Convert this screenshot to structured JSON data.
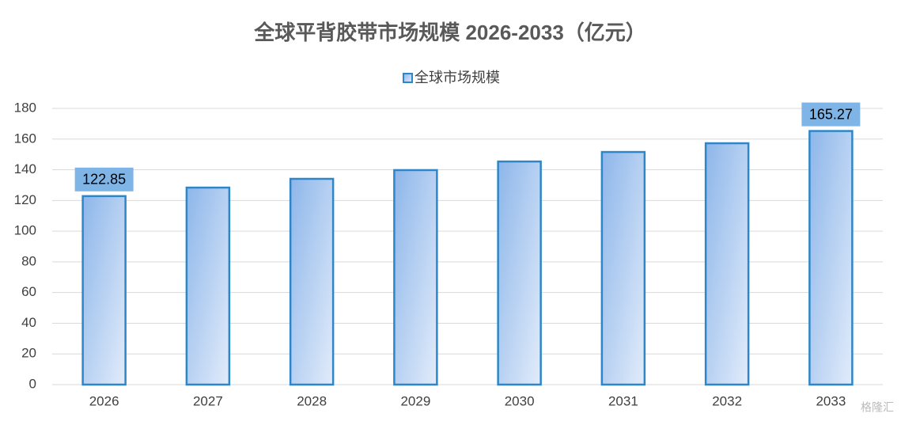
{
  "chart_data": {
    "type": "bar",
    "title": "全球平背胶带市场规模 2026-2033（亿元）",
    "categories": [
      "2026",
      "2027",
      "2028",
      "2029",
      "2030",
      "2031",
      "2032",
      "2033"
    ],
    "series": [
      {
        "name": "全球市场规模",
        "color": "#2e86c8",
        "values": [
          122.85,
          128.4,
          134.1,
          139.8,
          145.4,
          151.6,
          157.3,
          165.27
        ],
        "show_labels": [
          true,
          false,
          false,
          false,
          false,
          false,
          false,
          true
        ]
      }
    ],
    "ylim": [
      0,
      180
    ],
    "yticks": [
      0,
      20,
      40,
      60,
      80,
      100,
      120,
      140,
      160,
      180
    ],
    "grid": true,
    "legend": "top",
    "watermark": "格隆汇"
  }
}
